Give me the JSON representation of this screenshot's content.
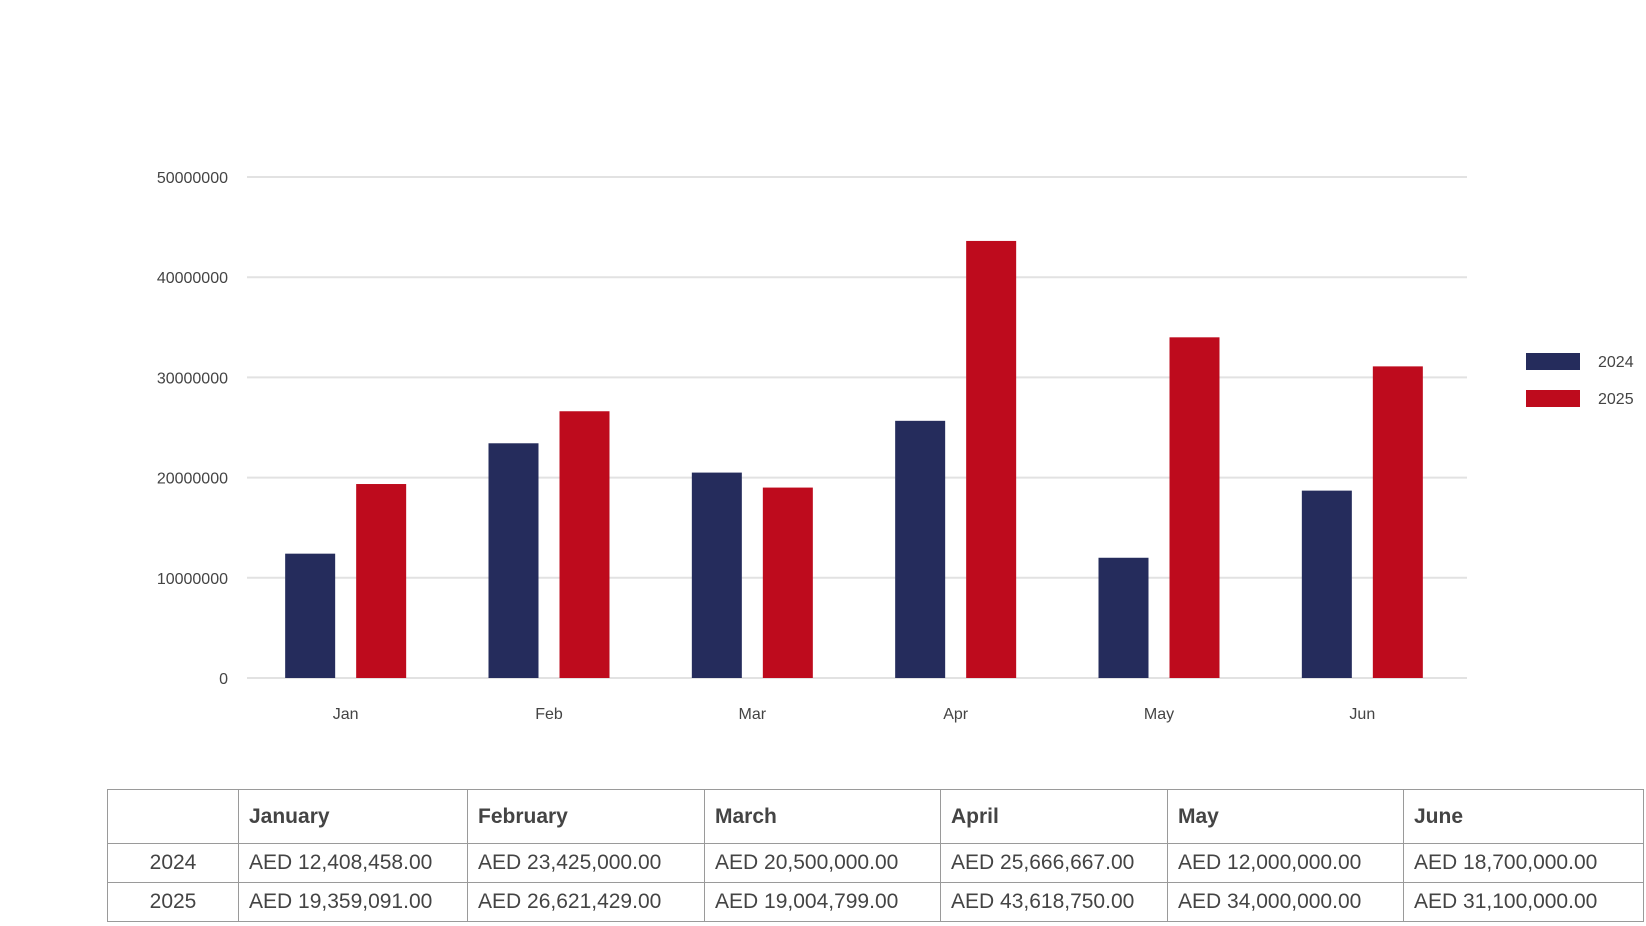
{
  "colors": {
    "series_2024": "#252c5c",
    "series_2025": "#be0b1d",
    "grid": "#e2e2e2",
    "text": "#444444"
  },
  "chart_data": {
    "type": "bar",
    "categories": [
      "Jan",
      "Feb",
      "Mar",
      "Apr",
      "May",
      "Jun"
    ],
    "series": [
      {
        "name": "2024",
        "values": [
          12408458,
          23425000,
          20500000,
          25666667,
          12000000,
          18700000
        ]
      },
      {
        "name": "2025",
        "values": [
          19359091,
          26621429,
          19004799,
          43618750,
          34000000,
          31100000
        ]
      }
    ],
    "yticks": [
      "0",
      "10000000",
      "20000000",
      "30000000",
      "40000000",
      "50000000"
    ],
    "ylim": [
      0,
      50000000
    ],
    "grid": true,
    "legend": "right"
  },
  "table": {
    "headers": [
      "",
      "January",
      "February",
      "March",
      "April",
      "May",
      "June"
    ],
    "rows": [
      {
        "label": "2024",
        "cells": [
          "AED 12,408,458.00",
          "AED 23,425,000.00",
          "AED 20,500,000.00",
          "AED 25,666,667.00",
          "AED 12,000,000.00",
          "AED 18,700,000.00"
        ]
      },
      {
        "label": "2025",
        "cells": [
          "AED 19,359,091.00",
          "AED 26,621,429.00",
          "AED 19,004,799.00",
          "AED 43,618,750.00",
          "AED 34,000,000.00",
          "AED 31,100,000.00"
        ]
      }
    ]
  }
}
